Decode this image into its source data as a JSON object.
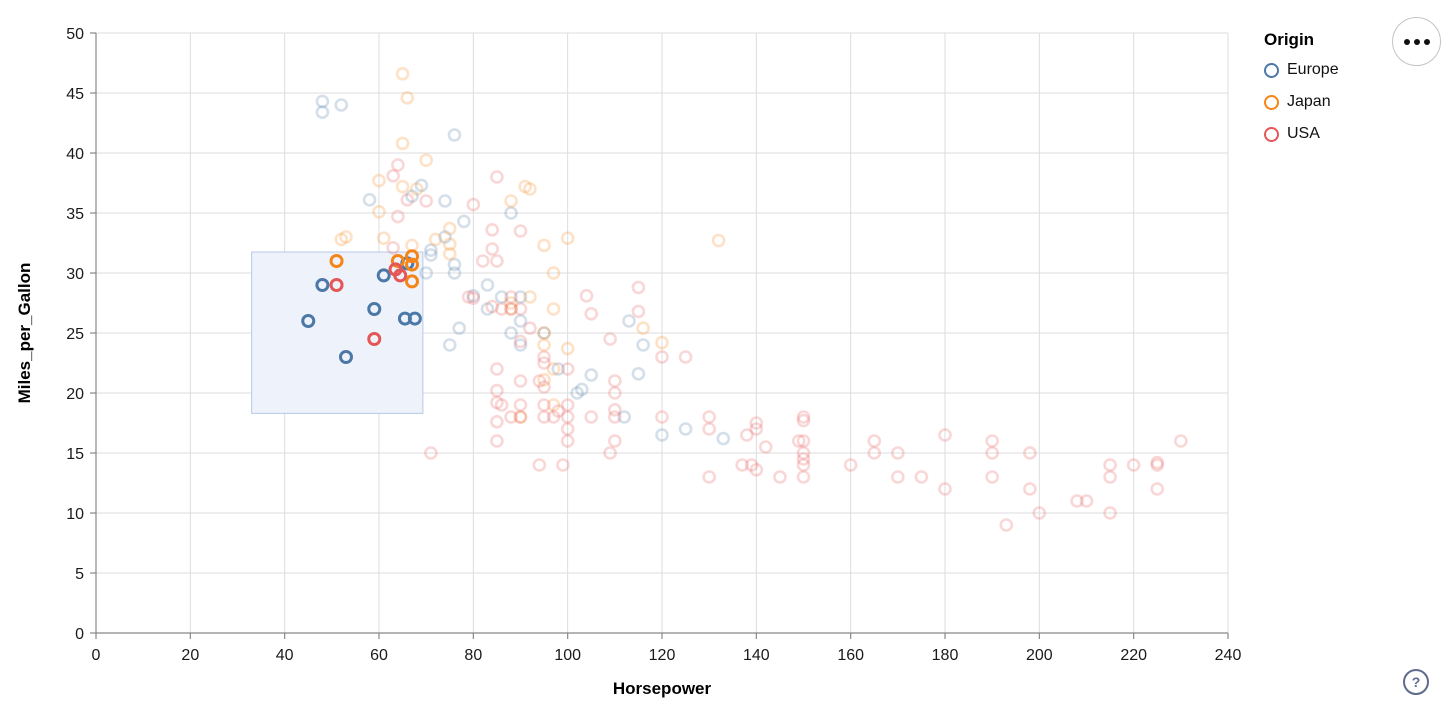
{
  "chart_data": {
    "type": "scatter",
    "xlabel": "Horsepower",
    "ylabel": "Miles_per_Gallon",
    "xlim": [
      0,
      240
    ],
    "ylim": [
      0,
      50
    ],
    "x_ticks": [
      0,
      20,
      40,
      60,
      80,
      100,
      120,
      140,
      160,
      180,
      200,
      220,
      240
    ],
    "y_ticks": [
      0,
      5,
      10,
      15,
      20,
      25,
      30,
      35,
      40,
      45,
      50
    ],
    "grid": true,
    "legend": {
      "title": "Origin",
      "position": "top-right-outside",
      "entries": [
        {
          "label": "Europe",
          "color": "#4c78a8"
        },
        {
          "label": "Japan",
          "color": "#f58518"
        },
        {
          "label": "USA",
          "color": "#e45756"
        }
      ]
    },
    "brush": {
      "x": [
        33,
        69.3
      ],
      "y": [
        18.3,
        31.75
      ],
      "fill": "#edf2fb",
      "stroke": "#b7c9e6",
      "note": "points inside brush are full opacity (selected), others faded"
    },
    "point_style": {
      "radius": 5.5,
      "stroke_width": 2.6,
      "unselected_opacity": 0.24
    },
    "series": [
      {
        "name": "Europe",
        "color": "#4c78a8",
        "points": [
          [
            45,
            26
          ],
          [
            48,
            29
          ],
          [
            53,
            23
          ],
          [
            59,
            27
          ],
          [
            61,
            29.8
          ],
          [
            66,
            30.8
          ],
          [
            65.5,
            26.2
          ],
          [
            67.6,
            26.2
          ],
          [
            48,
            44.3
          ],
          [
            48,
            43.4
          ],
          [
            52,
            44
          ],
          [
            76,
            41.5
          ],
          [
            58,
            36.1
          ],
          [
            69,
            37.3
          ],
          [
            67,
            36.4
          ],
          [
            78,
            34.3
          ],
          [
            74,
            36
          ],
          [
            74,
            33
          ],
          [
            71,
            31.9
          ],
          [
            71,
            31.5
          ],
          [
            70,
            30
          ],
          [
            76,
            30.7
          ],
          [
            80,
            28.1
          ],
          [
            77,
            25.4
          ],
          [
            90,
            24
          ],
          [
            95,
            25
          ],
          [
            88,
            25
          ],
          [
            90,
            28
          ],
          [
            76,
            30
          ],
          [
            83,
            29
          ],
          [
            83,
            27
          ],
          [
            75,
            24
          ],
          [
            90,
            26
          ],
          [
            86,
            28
          ],
          [
            88,
            35
          ],
          [
            113,
            26
          ],
          [
            116,
            24
          ],
          [
            105,
            21.5
          ],
          [
            115,
            21.6
          ],
          [
            98,
            22
          ],
          [
            102,
            20
          ],
          [
            103,
            20.3
          ],
          [
            112,
            18
          ],
          [
            120,
            16.5
          ],
          [
            125,
            17
          ],
          [
            133,
            16.2
          ]
        ]
      },
      {
        "name": "Japan",
        "color": "#f58518",
        "points": [
          [
            51,
            31
          ],
          [
            64,
            31
          ],
          [
            67,
            30.7
          ],
          [
            67,
            31.4
          ],
          [
            67,
            29.3
          ],
          [
            65,
            46.6
          ],
          [
            66,
            44.6
          ],
          [
            65,
            40.8
          ],
          [
            70,
            39.4
          ],
          [
            60,
            37.7
          ],
          [
            65,
            37.2
          ],
          [
            68,
            37
          ],
          [
            92,
            37
          ],
          [
            91,
            37.2
          ],
          [
            88,
            36
          ],
          [
            75,
            33.7
          ],
          [
            53,
            33
          ],
          [
            61,
            32.9
          ],
          [
            67,
            32.3
          ],
          [
            52,
            32.8
          ],
          [
            60,
            35.1
          ],
          [
            72,
            32.8
          ],
          [
            132,
            32.7
          ],
          [
            100,
            32.9
          ],
          [
            95,
            32.3
          ],
          [
            75,
            32.4
          ],
          [
            75,
            31.6
          ],
          [
            88,
            27
          ],
          [
            88,
            27.5
          ],
          [
            92,
            28
          ],
          [
            97,
            27
          ],
          [
            95,
            24
          ],
          [
            95,
            25
          ],
          [
            97,
            30
          ],
          [
            100,
            23.7
          ],
          [
            95,
            21.1
          ],
          [
            97,
            19
          ],
          [
            90,
            18
          ],
          [
            120,
            24.2
          ],
          [
            116,
            25.4
          ],
          [
            97,
            22
          ]
        ]
      },
      {
        "name": "USA",
        "color": "#e45756",
        "points": [
          [
            51,
            29
          ],
          [
            59,
            24.5
          ],
          [
            64.5,
            29.8
          ],
          [
            63.5,
            30.3
          ],
          [
            63,
            38.1
          ],
          [
            64,
            39
          ],
          [
            64,
            34.7
          ],
          [
            66,
            36.1
          ],
          [
            85,
            38
          ],
          [
            63,
            32.1
          ],
          [
            70,
            36
          ],
          [
            80,
            35.7
          ],
          [
            84,
            33.6
          ],
          [
            90,
            33.5
          ],
          [
            84,
            32
          ],
          [
            85,
            31
          ],
          [
            82,
            31
          ],
          [
            88,
            28
          ],
          [
            88,
            27
          ],
          [
            86,
            27
          ],
          [
            92,
            25.4
          ],
          [
            90,
            24.3
          ],
          [
            84,
            27.2
          ],
          [
            80,
            27.9
          ],
          [
            115,
            28.8
          ],
          [
            115,
            26.8
          ],
          [
            105,
            26.6
          ],
          [
            104,
            28.1
          ],
          [
            109,
            24.5
          ],
          [
            90,
            27
          ],
          [
            79,
            28
          ],
          [
            95,
            20.5
          ],
          [
            100,
            22
          ],
          [
            85,
            22
          ],
          [
            85,
            20.2
          ],
          [
            85,
            19.2
          ],
          [
            85,
            17.6
          ],
          [
            85,
            16
          ],
          [
            88,
            18
          ],
          [
            90,
            21
          ],
          [
            90,
            19
          ],
          [
            90,
            18
          ],
          [
            95,
            23
          ],
          [
            95,
            22.5
          ],
          [
            95,
            19
          ],
          [
            95,
            18
          ],
          [
            97,
            18
          ],
          [
            100,
            19
          ],
          [
            100,
            18
          ],
          [
            100,
            17
          ],
          [
            100,
            16
          ],
          [
            105,
            18
          ],
          [
            110,
            20
          ],
          [
            110,
            21
          ],
          [
            110,
            18.6
          ],
          [
            110,
            18
          ],
          [
            110,
            16
          ],
          [
            98,
            18.5
          ],
          [
            86,
            19
          ],
          [
            94,
            21
          ],
          [
            94,
            14
          ],
          [
            99,
            14
          ],
          [
            109,
            15
          ],
          [
            71,
            15
          ],
          [
            120,
            18
          ],
          [
            120,
            23
          ],
          [
            125,
            23
          ],
          [
            130,
            18
          ],
          [
            130,
            17
          ],
          [
            130,
            13
          ],
          [
            137,
            14
          ],
          [
            139,
            14
          ],
          [
            140,
            17
          ],
          [
            140,
            13.6
          ],
          [
            142,
            15.5
          ],
          [
            138,
            16.5
          ],
          [
            145,
            13
          ],
          [
            149,
            16
          ],
          [
            150,
            18
          ],
          [
            150,
            16
          ],
          [
            150,
            15
          ],
          [
            150,
            14
          ],
          [
            150,
            14.5
          ],
          [
            150,
            13
          ],
          [
            150,
            17.7
          ],
          [
            140,
            17.5
          ],
          [
            160,
            14
          ],
          [
            165,
            15
          ],
          [
            165,
            16
          ],
          [
            170,
            15
          ],
          [
            170,
            13
          ],
          [
            175,
            13
          ],
          [
            180,
            16.5
          ],
          [
            180,
            12
          ],
          [
            190,
            15
          ],
          [
            190,
            16
          ],
          [
            190,
            13
          ],
          [
            193,
            9
          ],
          [
            198,
            15
          ],
          [
            198,
            12
          ],
          [
            200,
            10
          ],
          [
            208,
            11
          ],
          [
            210,
            11
          ],
          [
            215,
            14
          ],
          [
            215,
            13
          ],
          [
            215,
            10
          ],
          [
            220,
            14
          ],
          [
            225,
            14
          ],
          [
            225,
            14.2
          ],
          [
            225,
            12
          ],
          [
            230,
            16
          ]
        ]
      }
    ]
  },
  "controls": {
    "menu_label": "•••",
    "help_label": "?"
  },
  "style": {
    "grid_color": "#dddddd",
    "axis_color": "#888888",
    "label_color": "#1a1a1a",
    "title_color": "#000000"
  }
}
